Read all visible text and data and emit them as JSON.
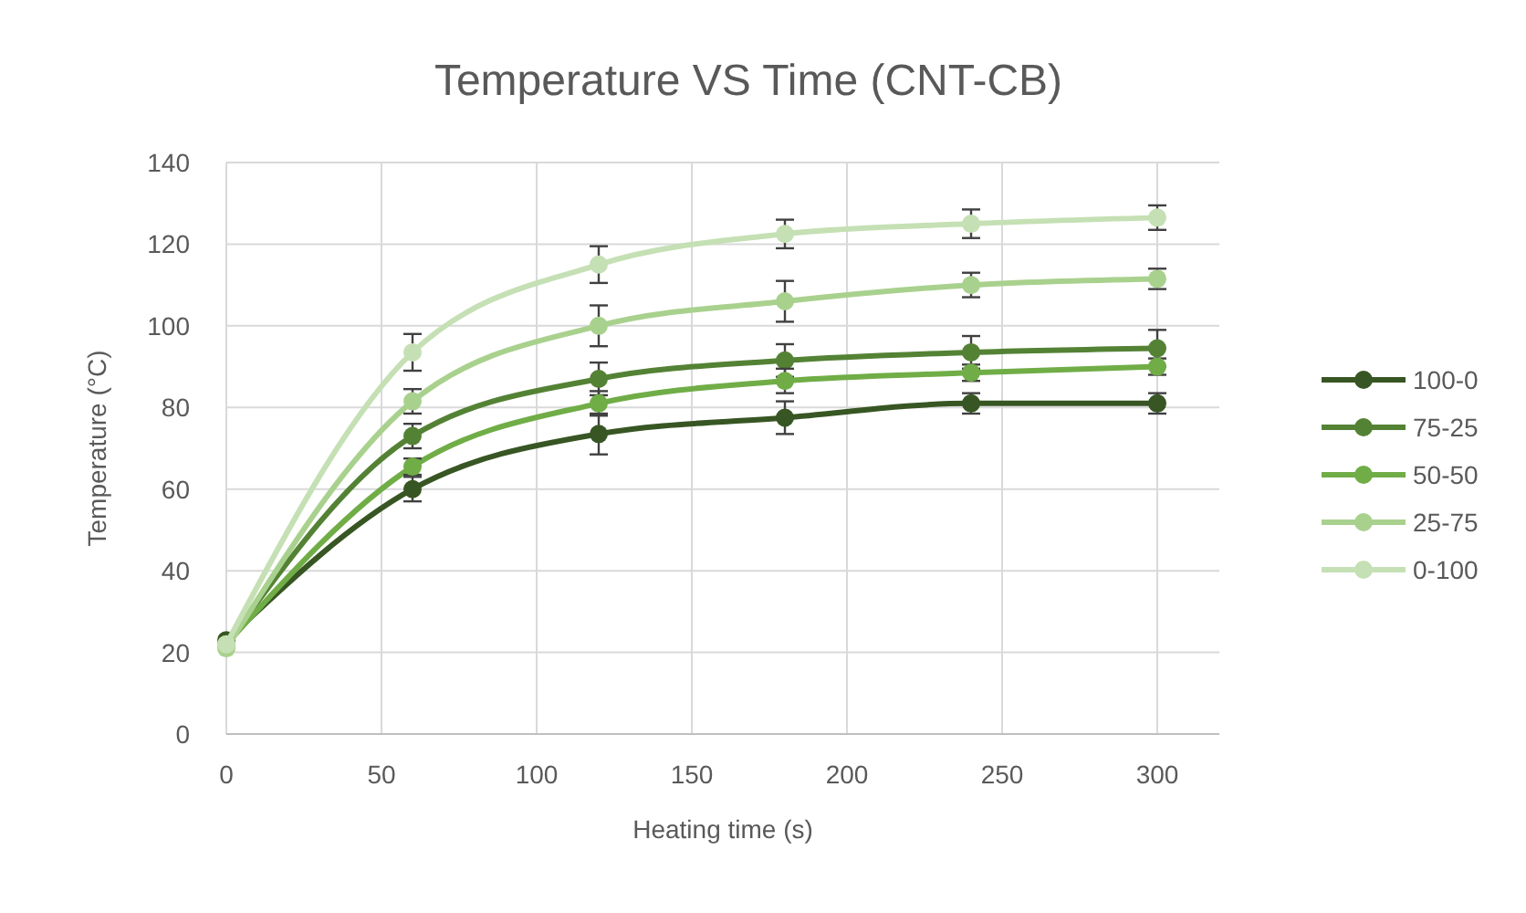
{
  "chart_data": {
    "type": "line",
    "title": "Temperature VS Time (CNT-CB)",
    "xlabel": "Heating time (s)",
    "ylabel": "Temperature  (°C)",
    "x": [
      0,
      60,
      120,
      180,
      240,
      300
    ],
    "series": [
      {
        "name": "100-0",
        "color": "#375623",
        "values": [
          23,
          60,
          73.5,
          77.5,
          81,
          81
        ],
        "errors": [
          null,
          3,
          5,
          4,
          2.5,
          2.5
        ]
      },
      {
        "name": "75-25",
        "color": "#548235",
        "values": [
          22,
          73,
          87,
          91.5,
          93.5,
          94.5
        ],
        "errors": [
          null,
          3,
          4,
          4,
          4,
          4.5
        ]
      },
      {
        "name": "50-50",
        "color": "#70ad47",
        "values": [
          22,
          65.5,
          81,
          86.5,
          88.5,
          90
        ],
        "errors": [
          null,
          2,
          3,
          3,
          2,
          2
        ]
      },
      {
        "name": "25-75",
        "color": "#a9d18e",
        "values": [
          21,
          81.5,
          100,
          106,
          110,
          111.5
        ],
        "errors": [
          null,
          3,
          5,
          5,
          3,
          2.5
        ]
      },
      {
        "name": "0-100",
        "color": "#c5e0b4",
        "values": [
          22,
          93.5,
          115,
          122.5,
          125,
          126.5
        ],
        "errors": [
          null,
          4.5,
          4.5,
          3.5,
          3.5,
          3
        ]
      }
    ],
    "xlim": [
      0,
      320
    ],
    "xticks": [
      0,
      50,
      100,
      150,
      200,
      250,
      300
    ],
    "ylim": [
      0,
      140
    ],
    "yticks": [
      0,
      20,
      40,
      60,
      80,
      100,
      120,
      140
    ],
    "grid": true,
    "legend": "right",
    "marker": "circle",
    "line_style": "solid"
  }
}
